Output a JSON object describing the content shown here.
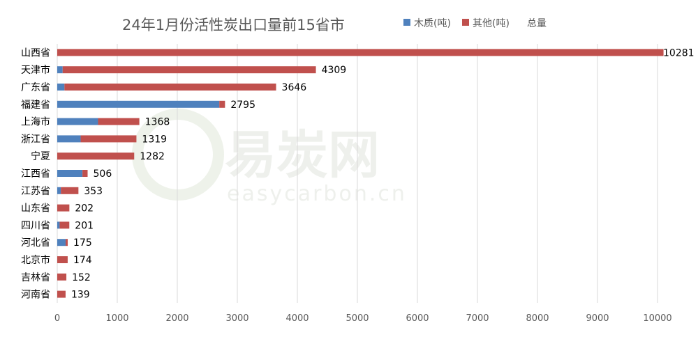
{
  "watermark": {
    "brand": "易炭网",
    "url": "easycarbon.cn"
  },
  "chart_data": {
    "type": "bar",
    "orientation": "horizontal",
    "stacked": true,
    "title": "24年1月份活性炭出口量前15省市",
    "categories": [
      "山西省",
      "天津市",
      "广东省",
      "福建省",
      "上海市",
      "浙江省",
      "宁夏",
      "江西省",
      "江苏省",
      "山东省",
      "四川省",
      "河北省",
      "北京市",
      "吉林省",
      "河南省"
    ],
    "series": [
      {
        "name": "木质(吨)",
        "color": "#4f81bd",
        "values": [
          0,
          90,
          120,
          2700,
          680,
          390,
          0,
          420,
          60,
          0,
          40,
          140,
          0,
          0,
          0
        ]
      },
      {
        "name": "其他(吨)",
        "color": "#c0504d",
        "values": [
          10281,
          4219,
          3526,
          95,
          688,
          929,
          1282,
          86,
          293,
          202,
          161,
          35,
          174,
          152,
          139
        ]
      }
    ],
    "totals_label": "总量",
    "totals": [
      10281,
      4309,
      3646,
      2795,
      1368,
      1319,
      1282,
      506,
      353,
      202,
      201,
      175,
      174,
      152,
      139
    ],
    "xlim": [
      0,
      10000
    ],
    "xticks": [
      0,
      1000,
      2000,
      3000,
      4000,
      5000,
      6000,
      7000,
      8000,
      9000,
      10000
    ],
    "grid": true,
    "legend_position": "top"
  }
}
